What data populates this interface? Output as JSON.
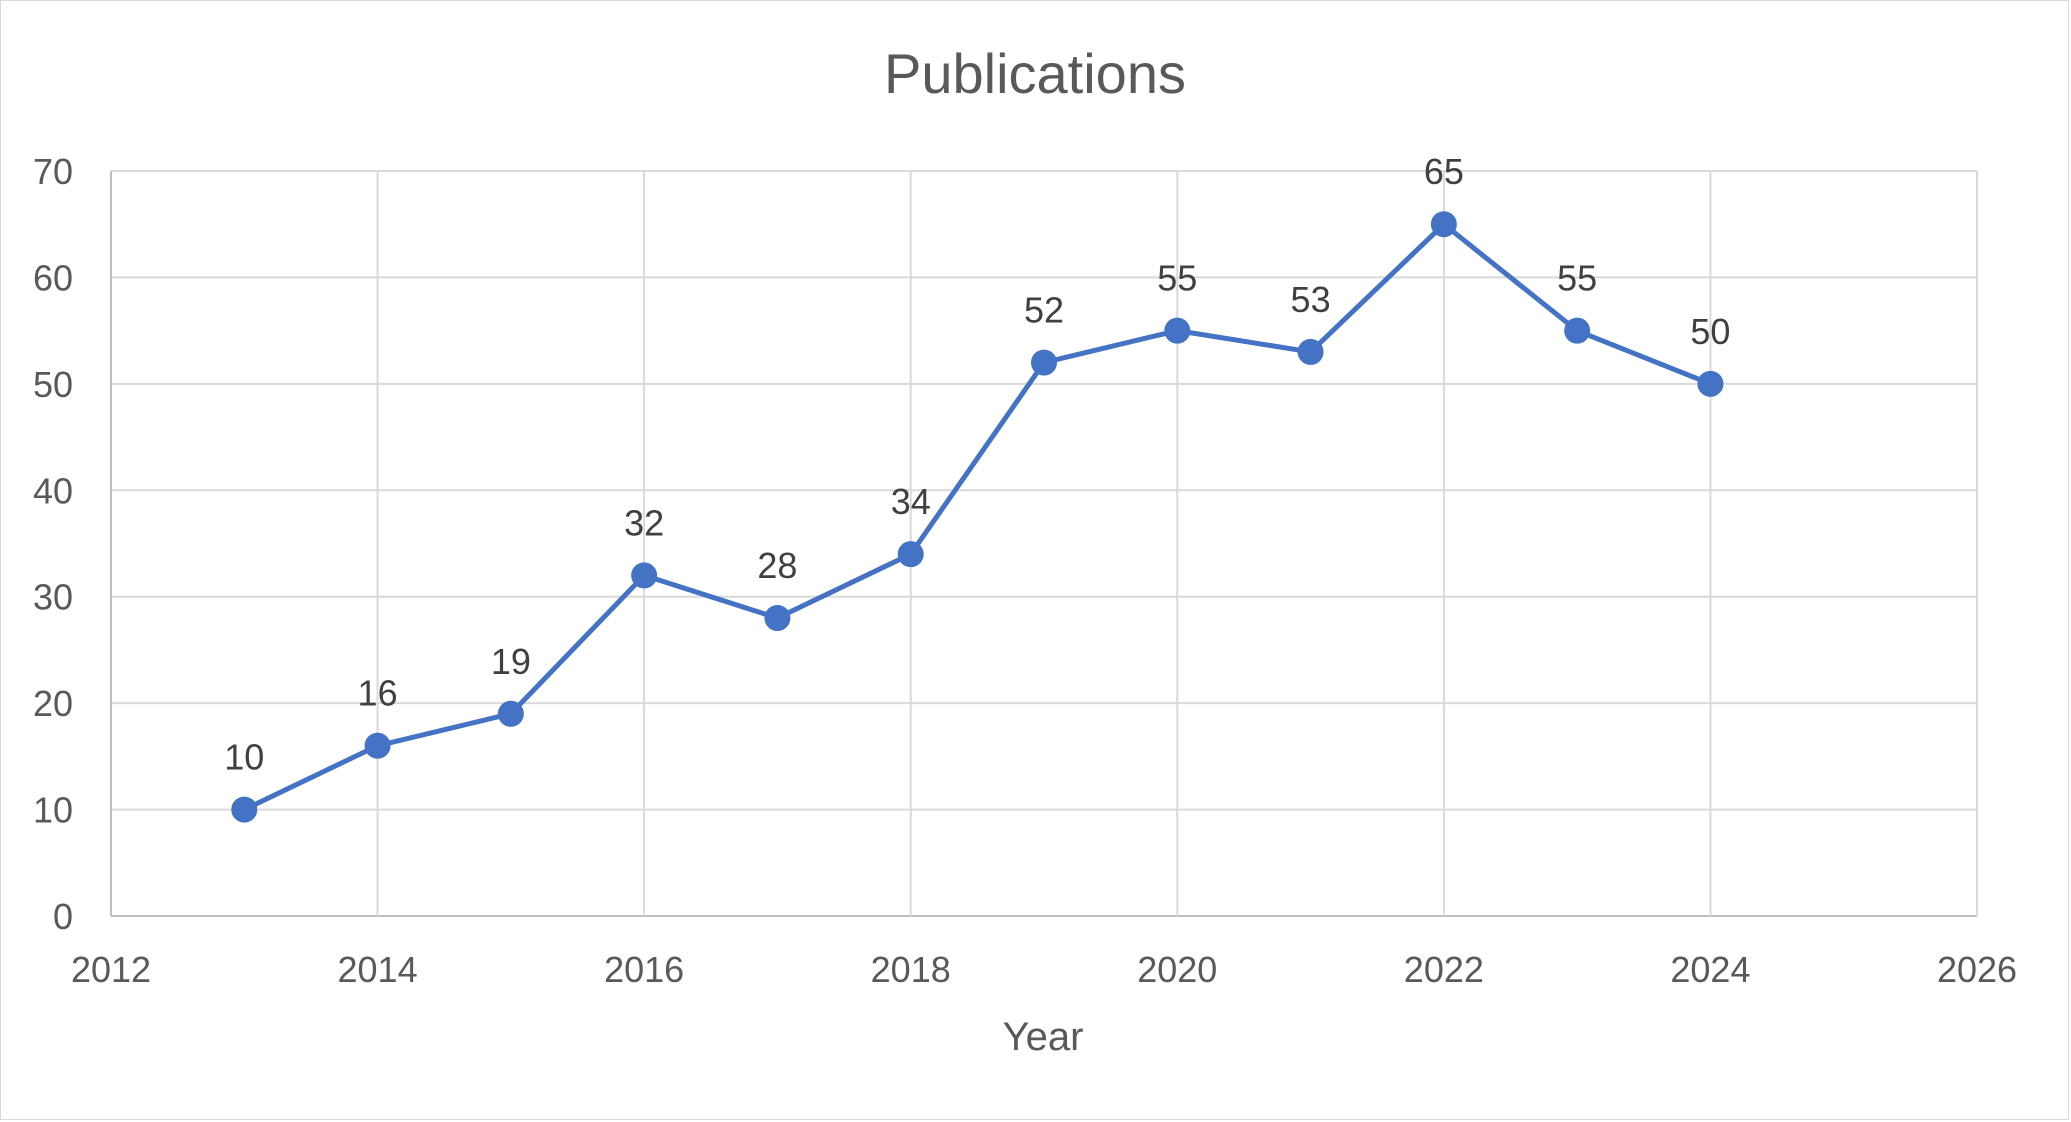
{
  "chart_data": {
    "type": "scatter",
    "title": "Publications",
    "xlabel": "Year",
    "ylabel": "",
    "xlim": [
      2012,
      2026
    ],
    "ylim": [
      0,
      70
    ],
    "xticks": [
      2012,
      2014,
      2016,
      2018,
      2020,
      2022,
      2024,
      2026
    ],
    "yticks": [
      0,
      10,
      20,
      30,
      40,
      50,
      60,
      70
    ],
    "grid": true,
    "legend": "none",
    "series": [
      {
        "color": "#4472c4",
        "line": true,
        "markers": true,
        "data_labels": true,
        "points": [
          {
            "x": 2013,
            "y": 10
          },
          {
            "x": 2014,
            "y": 16
          },
          {
            "x": 2015,
            "y": 19
          },
          {
            "x": 2016,
            "y": 32
          },
          {
            "x": 2017,
            "y": 28
          },
          {
            "x": 2018,
            "y": 34
          },
          {
            "x": 2019,
            "y": 52
          },
          {
            "x": 2020,
            "y": 55
          },
          {
            "x": 2021,
            "y": 53
          },
          {
            "x": 2022,
            "y": 65
          },
          {
            "x": 2023,
            "y": 55
          },
          {
            "x": 2024,
            "y": 50
          }
        ]
      }
    ]
  }
}
